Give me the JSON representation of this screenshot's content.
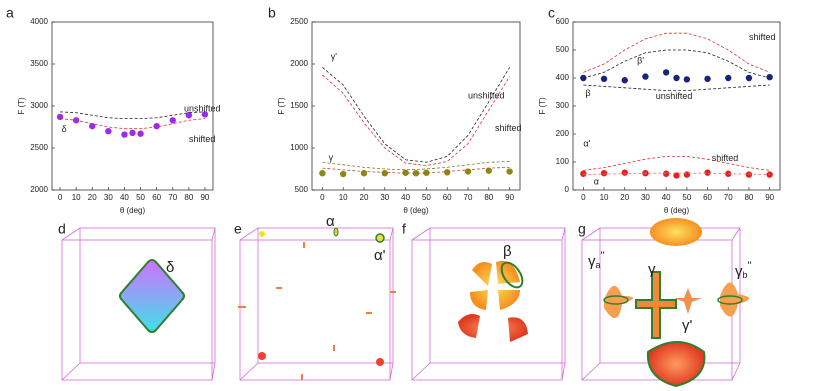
{
  "chart_data": [
    {
      "type": "scatter",
      "panel_label": "a",
      "xlabel": "θ (deg)",
      "ylabel": "F (T)",
      "xlim": [
        -5,
        95
      ],
      "xticks": [
        0,
        10,
        20,
        30,
        40,
        50,
        60,
        70,
        80,
        90
      ],
      "ylim": [
        2000,
        4000
      ],
      "yticks": [
        2000,
        2500,
        3000,
        3500,
        4000
      ],
      "series": [
        {
          "style": "markers",
          "color": "#9a2cf0",
          "x": [
            0,
            10,
            20,
            30,
            40,
            45,
            50,
            60,
            70,
            80,
            90
          ],
          "values": [
            2870,
            2830,
            2760,
            2700,
            2660,
            2680,
            2670,
            2760,
            2830,
            2890,
            2900
          ]
        },
        {
          "style": "dashed",
          "color": "#222222",
          "x": [
            0,
            10,
            20,
            30,
            40,
            50,
            60,
            70,
            80,
            90
          ],
          "values": [
            2930,
            2920,
            2890,
            2860,
            2850,
            2850,
            2860,
            2890,
            2920,
            2930
          ]
        },
        {
          "style": "dashed",
          "color": "#e03030",
          "x": [
            0,
            10,
            20,
            30,
            40,
            50,
            60,
            70,
            80,
            90
          ],
          "values": [
            2850,
            2830,
            2790,
            2750,
            2730,
            2730,
            2750,
            2790,
            2830,
            2850
          ]
        }
      ],
      "annotations": [
        {
          "text": "unshifted",
          "color": "#111111"
        },
        {
          "text": "shifted",
          "color": "#e02020"
        },
        {
          "text": "δ",
          "color": "#9a2cf0"
        }
      ]
    },
    {
      "type": "scatter",
      "panel_label": "b",
      "xlabel": "θ (deg)",
      "ylabel": "F (T)",
      "xlim": [
        -5,
        95
      ],
      "xticks": [
        0,
        10,
        20,
        30,
        40,
        50,
        60,
        70,
        80,
        90
      ],
      "ylim": [
        500,
        2500
      ],
      "yticks": [
        500,
        1000,
        1500,
        2000,
        2500
      ],
      "series": [
        {
          "style": "markers",
          "color": "#8a8a10",
          "x": [
            0,
            10,
            20,
            30,
            40,
            45,
            50,
            60,
            70,
            80,
            90
          ],
          "values": [
            700,
            690,
            700,
            700,
            705,
            700,
            705,
            710,
            720,
            730,
            720
          ]
        },
        {
          "style": "dashed",
          "color": "#222222",
          "x": [
            0,
            10,
            20,
            30,
            40,
            50,
            60,
            70,
            80,
            90
          ],
          "values": [
            1960,
            1750,
            1380,
            1050,
            860,
            830,
            900,
            1150,
            1550,
            1960
          ]
        },
        {
          "style": "dashed",
          "color": "#e03030",
          "x": [
            0,
            10,
            20,
            30,
            40,
            50,
            60,
            70,
            80,
            90
          ],
          "values": [
            1870,
            1650,
            1300,
            1000,
            820,
            790,
            840,
            1050,
            1450,
            1850
          ]
        },
        {
          "style": "dashed",
          "color": "#6a8a20",
          "x": [
            0,
            10,
            20,
            30,
            40,
            50,
            60,
            70,
            80,
            90
          ],
          "values": [
            830,
            800,
            770,
            750,
            740,
            750,
            770,
            800,
            830,
            840
          ]
        },
        {
          "style": "dashed",
          "color": "#c05030",
          "x": [
            0,
            10,
            20,
            30,
            40,
            50,
            60,
            70,
            80,
            90
          ],
          "values": [
            760,
            740,
            720,
            710,
            700,
            700,
            720,
            740,
            760,
            770
          ]
        }
      ],
      "annotations": [
        {
          "text": "γ'",
          "color": "#8a8a10"
        },
        {
          "text": "γ",
          "color": "#8a8a10"
        },
        {
          "text": "unshifted",
          "color": "#111111"
        },
        {
          "text": "shifted",
          "color": "#e02020"
        }
      ]
    },
    {
      "type": "scatter",
      "panel_label": "c",
      "xlabel": "θ (deg)",
      "ylabel": "F (T)",
      "xlim": [
        -5,
        95
      ],
      "xticks": [
        0,
        10,
        20,
        30,
        40,
        50,
        60,
        70,
        80,
        90
      ],
      "ylim": [
        0,
        600
      ],
      "yticks": [
        0,
        100,
        200,
        300,
        400,
        500,
        600
      ],
      "series": [
        {
          "style": "markers",
          "color": "#1a237e",
          "x": [
            0,
            10,
            20,
            30,
            40,
            45,
            50,
            60,
            70,
            80,
            90
          ],
          "values": [
            400,
            397,
            392,
            405,
            420,
            400,
            395,
            397,
            400,
            400,
            403
          ]
        },
        {
          "style": "markers",
          "color": "#e62020",
          "x": [
            0,
            10,
            20,
            30,
            40,
            45,
            50,
            60,
            70,
            80,
            90
          ],
          "values": [
            58,
            60,
            62,
            60,
            58,
            52,
            55,
            62,
            58,
            55,
            55
          ]
        },
        {
          "style": "dashed",
          "color": "#e03030",
          "x": [
            0,
            10,
            20,
            30,
            40,
            50,
            60,
            70,
            80,
            90
          ],
          "values": [
            420,
            450,
            500,
            540,
            560,
            560,
            540,
            500,
            450,
            420
          ]
        },
        {
          "style": "dashed",
          "color": "#222222",
          "x": [
            0,
            10,
            20,
            30,
            40,
            50,
            60,
            70,
            80,
            90
          ],
          "values": [
            400,
            420,
            460,
            490,
            500,
            500,
            490,
            460,
            420,
            400
          ]
        },
        {
          "style": "dashed",
          "color": "#222222",
          "x": [
            0,
            10,
            20,
            30,
            40,
            50,
            60,
            70,
            80,
            90
          ],
          "values": [
            375,
            370,
            365,
            360,
            355,
            355,
            360,
            365,
            370,
            375
          ]
        },
        {
          "style": "dashed",
          "color": "#e03030",
          "x": [
            0,
            10,
            20,
            30,
            40,
            50,
            60,
            70,
            80,
            90
          ],
          "values": [
            70,
            80,
            95,
            110,
            120,
            120,
            110,
            95,
            80,
            70
          ]
        },
        {
          "style": "dashed",
          "color": "#e08080",
          "x": [
            0,
            10,
            20,
            30,
            40,
            50,
            60,
            70,
            80,
            90
          ],
          "values": [
            55,
            57,
            58,
            60,
            60,
            60,
            60,
            58,
            57,
            55
          ]
        }
      ],
      "annotations": [
        {
          "text": "shifted",
          "color": "#e02020"
        },
        {
          "text": "β'",
          "color": "#1a237e"
        },
        {
          "text": "β",
          "color": "#1a237e"
        },
        {
          "text": "unshifted",
          "color": "#111111"
        },
        {
          "text": "α'",
          "color": "#e02020"
        },
        {
          "text": "shifted",
          "color": "#e02020"
        },
        {
          "text": "α",
          "color": "#e02020"
        }
      ]
    }
  ],
  "illustrations": [
    {
      "panel_label": "d",
      "labels": [
        {
          "text": "δ"
        }
      ]
    },
    {
      "panel_label": "e",
      "labels": [
        {
          "text": "α"
        },
        {
          "text": "α'"
        }
      ]
    },
    {
      "panel_label": "f",
      "labels": [
        {
          "text": "β"
        }
      ]
    },
    {
      "panel_label": "g",
      "labels": [
        {
          "text": "γ",
          "sub": "a",
          "sup": "''"
        },
        {
          "text": "γ"
        },
        {
          "text": "γ",
          "sub": "b",
          "sup": "''"
        },
        {
          "text": "γ'"
        }
      ]
    }
  ]
}
